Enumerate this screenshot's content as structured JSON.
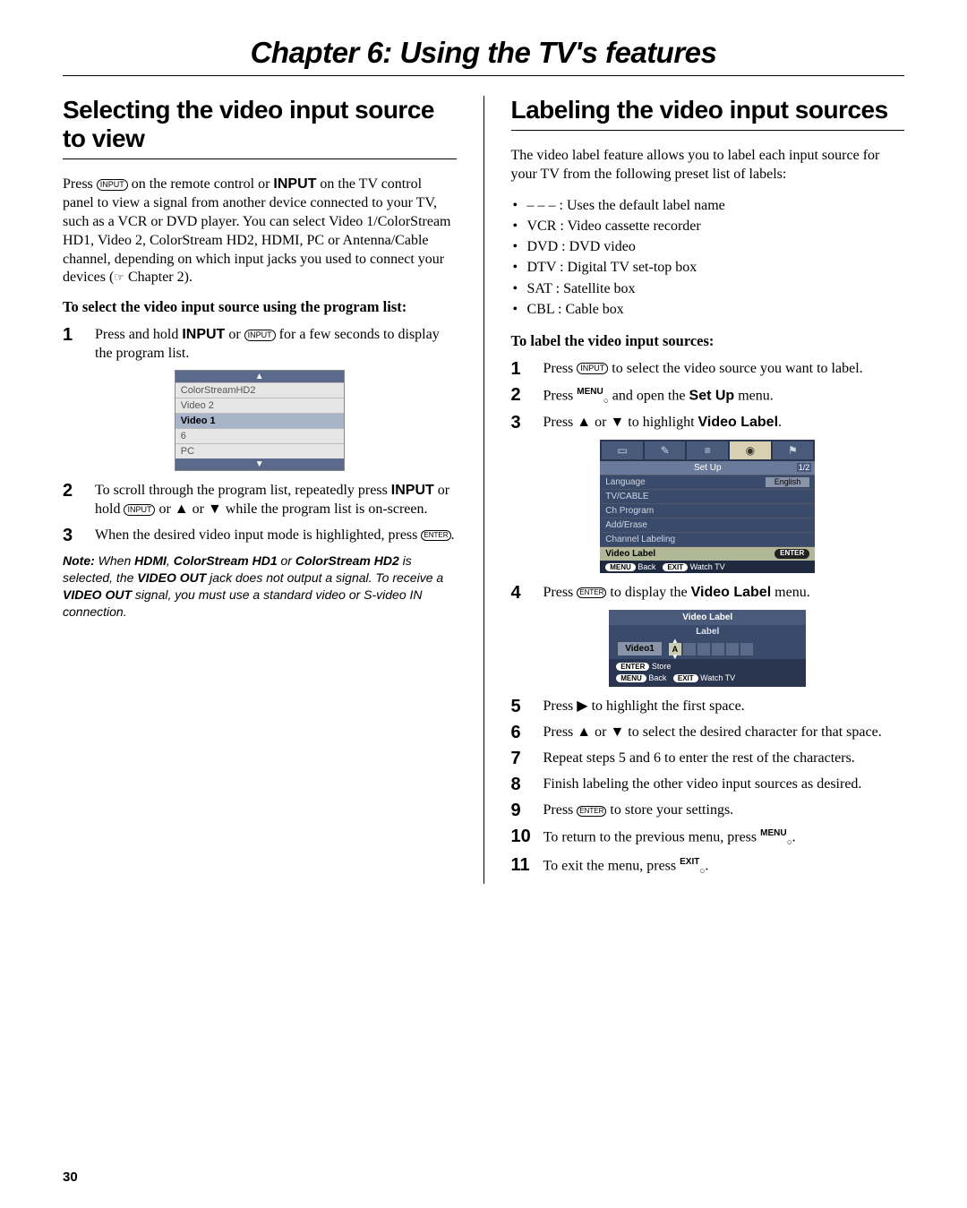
{
  "chapter_title": "Chapter 6: Using the TV's features",
  "page_number": "30",
  "left": {
    "section_title": "Selecting the video input source to view",
    "intro_html": "Press <INPUT_ICON> on the remote control or <b>INPUT</b> on the TV control panel to view a signal from another device connected to your TV, such as a VCR or DVD player. You can select Video 1/ColorStream HD1, Video 2, ColorStream HD2, HDMI, PC or Antenna/Cable channel, depending on which input jacks you used to connect your devices (☞ Chapter 2).",
    "subheading": "To select the video input source using the program list:",
    "step1": "Press and hold <b>INPUT</b> or <INPUT_ICON> for a few seconds to display the program list.",
    "prog_list": {
      "rows": [
        "ColorStreamHD2",
        "Video 2",
        "Video 1",
        "6",
        "PC"
      ],
      "selected_index": 2
    },
    "step2": "To scroll through the program list, repeatedly press <b>INPUT</b> or hold <INPUT_ICON> or ▲ or ▼ while the program list is on-screen.",
    "step3": "When the desired video input mode is highlighted, press <ENTER_ICON>.",
    "note_label": "Note:",
    "note_body": " When <b>HDMI</b>, <b>ColorStream HD1</b> or <b>ColorStream HD2</b> is selected, the <b>VIDEO OUT</b> jack does not output a signal. To receive a <b>VIDEO OUT</b> signal, you must use a standard video or S-video IN connection."
  },
  "right": {
    "section_title": "Labeling the video input sources",
    "intro": "The video label feature allows you to label each input source for your TV from the following preset list of labels:",
    "bullets": [
      "– – –  : Uses the default label name",
      "VCR  : Video cassette recorder",
      "DVD : DVD video",
      "DTV  : Digital TV set-top box",
      "SAT  : Satellite box",
      "CBL  : Cable box"
    ],
    "subheading": "To label the video input sources:",
    "step1": "Press <INPUT_ICON> to select the video source you want to label.",
    "step2": "Press <MENU_SUP> and open the <b>Set Up</b> menu.",
    "step3": "Press ▲ or ▼ to highlight <b>Video Label</b>.",
    "setup_menu": {
      "title": "Set Up",
      "page": "1/2",
      "rows": [
        {
          "label": "Language",
          "val": "English"
        },
        {
          "label": "TV/CABLE"
        },
        {
          "label": "Ch Program"
        },
        {
          "label": "Add/Erase"
        },
        {
          "label": "Channel Labeling"
        },
        {
          "label": "Video Label",
          "pill": "ENTER",
          "sel": true
        }
      ],
      "foot": [
        {
          "pill": "MENU",
          "txt": "Back"
        },
        {
          "pill": "EXIT",
          "txt": "Watch TV"
        }
      ]
    },
    "step4": "Press <ENTER_ICON> to display the <b>Video Label</b> menu.",
    "vlabel_menu": {
      "title": "Video Label",
      "sub": "Label",
      "src": "Video1",
      "first_char": "A",
      "box_count": 6,
      "foot": [
        {
          "pill": "ENTER",
          "txt": "Store"
        },
        {
          "pill": "MENU",
          "txt": "Back"
        },
        {
          "pill": "EXIT",
          "txt": "Watch TV"
        }
      ]
    },
    "step5": "Press ▶ to highlight the first space.",
    "step6": "Press ▲ or ▼ to select the desired character for that space.",
    "step7": "Repeat steps 5 and 6 to enter the rest of the characters.",
    "step8": "Finish labeling the other video input sources as desired.",
    "step9": "Press <ENTER_ICON> to store your settings.",
    "step10": "To return to the previous menu, press <MENU_SUP>.",
    "step11": "To exit the menu, press <EXIT_SUP>."
  }
}
